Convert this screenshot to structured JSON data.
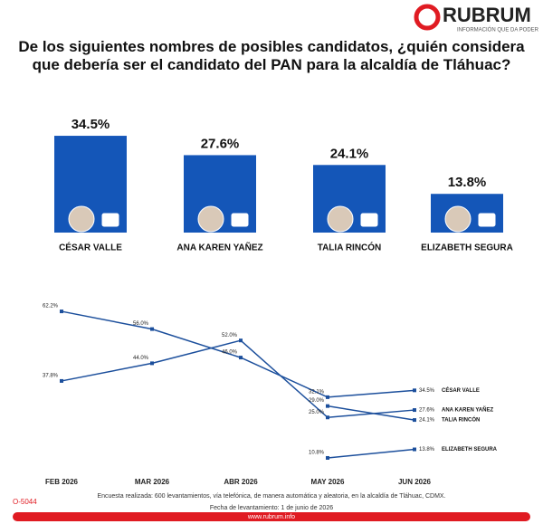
{
  "brand": "RUBRUM",
  "tagline": "INFORMACIÓN QUE DA PODER",
  "title": "De los siguientes nombres de posibles candidatos, ¿quién considera que debería ser el candidato del PAN para la alcaldía de Tláhuac?",
  "chart_data": [
    {
      "type": "bar",
      "categories": [
        "CÉSAR VALLE",
        "ANA KAREN YAÑEZ",
        "TALIA RINCÓN",
        "ELIZABETH SEGURA"
      ],
      "values": [
        34.5,
        27.6,
        24.1,
        13.8
      ],
      "value_labels": [
        "34.5%",
        "27.6%",
        "24.1%",
        "13.8%"
      ],
      "color": "#1456b8"
    },
    {
      "type": "line",
      "categories": [
        "FEB 2026",
        "MAR 2026",
        "ABR 2026",
        "MAY 2026",
        "JUN 2026"
      ],
      "series": [
        {
          "name": "CÉSAR VALLE",
          "color": "#1c4f9c",
          "values": [
            62.2,
            56.0,
            46.0,
            32.1,
            34.5
          ],
          "value_labels": [
            "62.2%",
            "56.0%",
            "46.0%",
            "32.1%",
            "34.5%"
          ]
        },
        {
          "name": "ANA KAREN YAÑEZ",
          "color": "#1c4f9c",
          "values": [
            37.8,
            44.0,
            52.0,
            25.0,
            27.6
          ],
          "value_labels": [
            "37.8%",
            "44.0%",
            "52.0%",
            "25.0%",
            "27.6%"
          ]
        },
        {
          "name": "TALIA RINCÓN",
          "color": "#1c4f9c",
          "values": [
            null,
            null,
            null,
            29.0,
            24.1
          ],
          "value_labels": [
            null,
            null,
            null,
            "29.0%",
            "24.1%"
          ]
        },
        {
          "name": "ELIZABETH SEGURA",
          "color": "#1c4f9c",
          "values": [
            null,
            null,
            null,
            10.8,
            13.8
          ],
          "value_labels": [
            null,
            null,
            null,
            "10.8%",
            "13.8%"
          ]
        }
      ]
    }
  ],
  "footer": {
    "code": "O-5044",
    "note": "Encuesta realizada: 600 levantamientos, vía telefónica, de manera automática y aleatoria, en la alcaldía de Tláhuac, CDMX.",
    "date": "Fecha de levantamiento: 1 de junio de 2026",
    "url": "www.rubrum.info"
  }
}
